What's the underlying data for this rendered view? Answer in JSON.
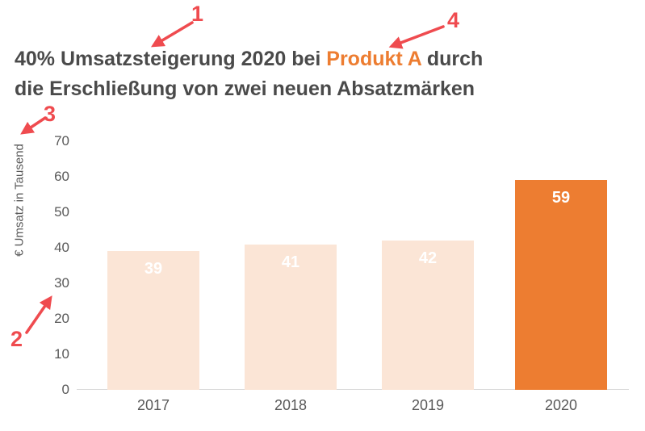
{
  "title": {
    "line1_prefix": "40% Umsatzsteigerung 2020 bei ",
    "line1_highlight": "Produkt A",
    "line1_suffix": " durch",
    "line2": "die Erschließung von zwei neuen Absatzmärken"
  },
  "colors": {
    "bg": "#ffffff",
    "title_text": "#4a4a4a",
    "highlight": "#ed7d31",
    "bar_default": "#fbe5d6",
    "bar_highlight": "#ed7d31",
    "axis_text": "#595959",
    "axis_line": "#d9d9d9",
    "annotation_red": "#ef4b4f",
    "value_label": "#ffffff"
  },
  "annotations": [
    {
      "label": "1"
    },
    {
      "label": "2"
    },
    {
      "label": "3"
    },
    {
      "label": "4"
    }
  ],
  "chart_data": {
    "type": "bar",
    "title": "40% Umsatzsteigerung 2020 bei Produkt A durch die Erschließung von zwei neuen Absatzmärken",
    "categories": [
      "2017",
      "2018",
      "2019",
      "2020"
    ],
    "values": [
      39,
      41,
      42,
      59
    ],
    "data_labels": [
      "39",
      "41",
      "42",
      "59"
    ],
    "bar_colors": [
      "#fbe5d6",
      "#fbe5d6",
      "#fbe5d6",
      "#ed7d31"
    ],
    "highlighted_category": "2020",
    "xlabel": "",
    "ylabel": "€ Umsatz in Tausend",
    "yticks": [
      0,
      10,
      20,
      30,
      40,
      50,
      60,
      70
    ],
    "ylim": [
      0,
      70
    ],
    "grid": false,
    "legend": false,
    "data_label_position": "inside-top",
    "data_label_color": "#ffffff"
  }
}
